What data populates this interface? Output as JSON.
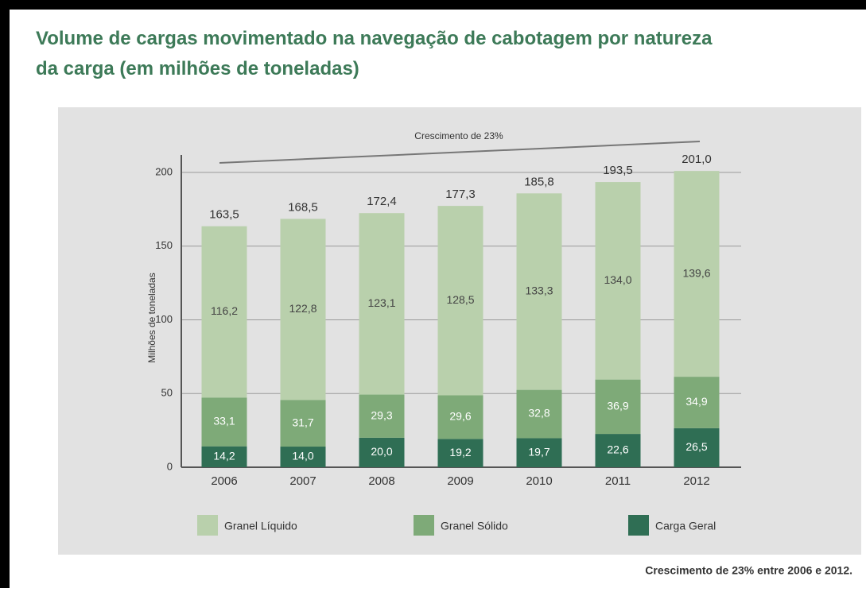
{
  "chart_data": {
    "type": "stacked-bar",
    "title": "Volume de cargas movimentado na navegação de cabotagem por natureza da carga (em milhões de toneladas)",
    "ylabel": "Milhões de toneladas",
    "annotation": "Crescimento de 23%",
    "footnote": "Crescimento de 23% entre 2006 e 2012.",
    "categories": [
      "2006",
      "2007",
      "2008",
      "2009",
      "2010",
      "2011",
      "2012"
    ],
    "series": [
      {
        "name": "Granel Líquido",
        "color": "#b9d0ac",
        "values": [
          116.2,
          122.8,
          123.1,
          128.5,
          133.3,
          134.0,
          139.6
        ],
        "value_labels": [
          "116,2",
          "122,8",
          "123,1",
          "128,5",
          "133,3",
          "134,0",
          "139,6"
        ]
      },
      {
        "name": "Granel Sólido",
        "color": "#7eaa78",
        "values": [
          33.1,
          31.7,
          29.3,
          29.6,
          32.8,
          36.9,
          34.9
        ],
        "value_labels": [
          "33,1",
          "31,7",
          "29,3",
          "29,6",
          "32,8",
          "36,9",
          "34,9"
        ]
      },
      {
        "name": "Carga Geral",
        "color": "#2f6e54",
        "values": [
          14.2,
          14.0,
          20.0,
          19.2,
          19.7,
          22.6,
          26.5
        ],
        "value_labels": [
          "14,2",
          "14,0",
          "20,0",
          "19,2",
          "19,7",
          "22,6",
          "26,5"
        ]
      }
    ],
    "totals": [
      163.5,
      168.5,
      172.4,
      177.3,
      185.8,
      193.5,
      201.0
    ],
    "total_labels": [
      "163,5",
      "168,5",
      "172,4",
      "177,3",
      "185,8",
      "193,5",
      "201,0"
    ],
    "ylim": [
      0,
      200
    ],
    "yticks": [
      0,
      50,
      100,
      150,
      200
    ],
    "grid": true
  }
}
